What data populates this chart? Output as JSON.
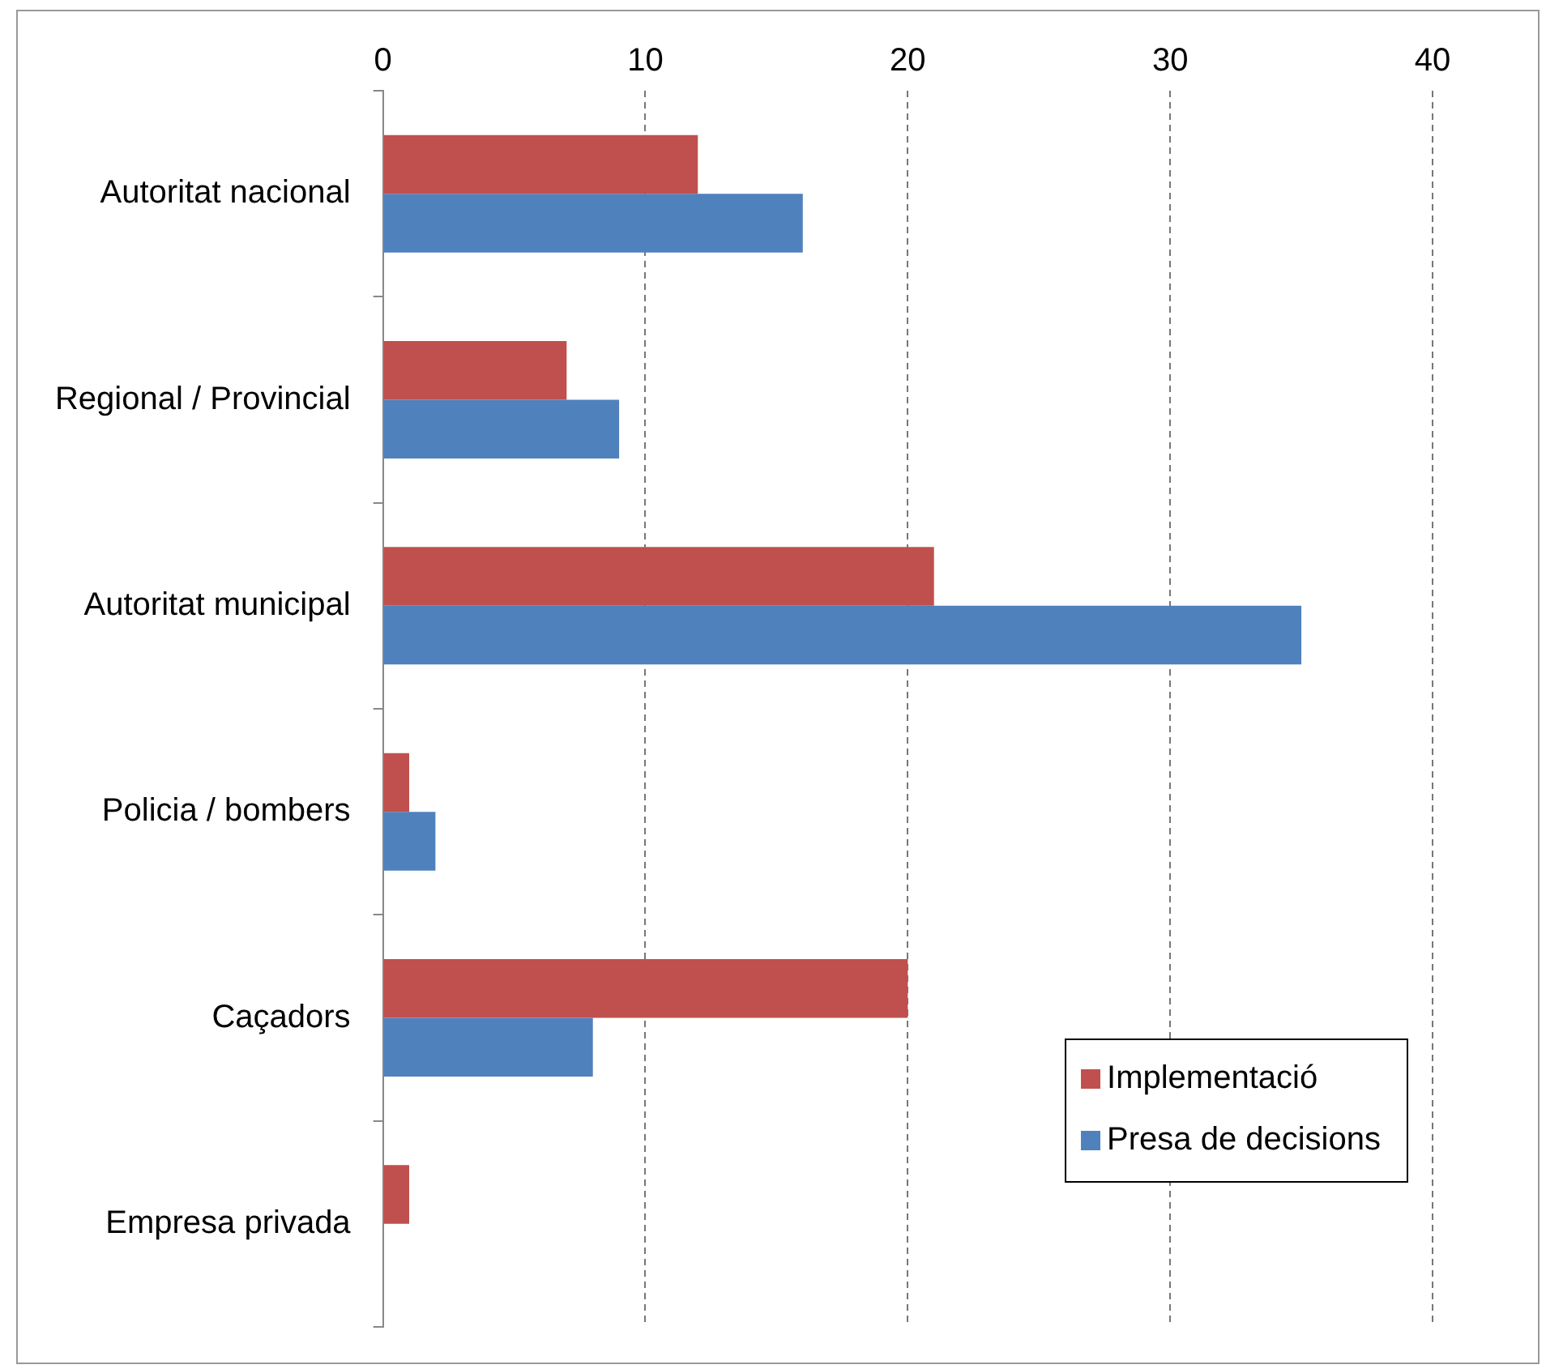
{
  "chart_data": {
    "type": "bar",
    "orientation": "horizontal",
    "categories": [
      "Autoritat nacional",
      "Regional / Provincial",
      "Autoritat municipal",
      "Policia / bombers",
      "Caçadors",
      "Empresa privada"
    ],
    "series": [
      {
        "name": "Implementació",
        "color": "#c0504d",
        "values": [
          12,
          7,
          21,
          1,
          20,
          1
        ]
      },
      {
        "name": "Presa de decisions",
        "color": "#4f81bd",
        "values": [
          16,
          9,
          35,
          2,
          8,
          0
        ]
      }
    ],
    "xlim": [
      0,
      40
    ],
    "xticks": [
      0,
      10,
      20,
      30,
      40
    ],
    "grid": "x",
    "legend": "bottom right"
  }
}
